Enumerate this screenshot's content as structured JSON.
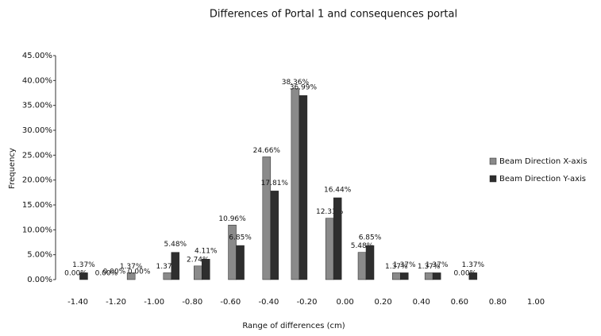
{
  "chart_data": {
    "type": "bar",
    "title": "Differences of Portal 1 and consequences portal",
    "x_label": "Range of differences (cm)",
    "y_label": "Frequency",
    "x": [
      -1.39,
      -1.23,
      -1.1,
      -0.91,
      -0.75,
      -0.57,
      -0.39,
      -0.24,
      -0.06,
      0.11,
      0.29,
      0.46,
      0.65
    ],
    "xlim": [
      -1.5,
      1.1
    ],
    "xticks": [
      {
        "value": -1.4,
        "label": "-1.40"
      },
      {
        "value": -1.2,
        "label": "-1.20"
      },
      {
        "value": -1.0,
        "label": "-1.00"
      },
      {
        "value": -0.8,
        "label": "-0.80"
      },
      {
        "value": -0.6,
        "label": "-0.60"
      },
      {
        "value": -0.4,
        "label": "-0.40"
      },
      {
        "value": -0.2,
        "label": "-0.20"
      },
      {
        "value": 0,
        "label": "0.00"
      },
      {
        "value": 0.2,
        "label": "0.20"
      },
      {
        "value": 0.4,
        "label": "0.40"
      },
      {
        "value": 0.6,
        "label": "0.60"
      },
      {
        "value": 0.8,
        "label": "0.80"
      },
      {
        "value": 1.0,
        "label": "1.00"
      }
    ],
    "ylim": [
      0,
      45
    ],
    "yticks": [
      {
        "value": 0,
        "label": "0.00%"
      },
      {
        "value": 5,
        "label": "5.00%"
      },
      {
        "value": 10,
        "label": "10.00%"
      },
      {
        "value": 15,
        "label": "15.00%"
      },
      {
        "value": 20,
        "label": "20.00%"
      },
      {
        "value": 25,
        "label": "25.00%"
      },
      {
        "value": 30,
        "label": "30.00%"
      },
      {
        "value": 35,
        "label": "35.00%"
      },
      {
        "value": 40,
        "label": "40.00%"
      },
      {
        "value": 45,
        "label": "45.00%"
      }
    ],
    "legend": "right",
    "series": [
      {
        "name": "Beam Direction X-axis",
        "color": "#8a8a8a",
        "values": [
          0,
          0,
          1.37,
          1.37,
          2.74,
          10.96,
          24.66,
          38.36,
          12.33,
          5.48,
          1.37,
          1.37,
          0
        ],
        "value_labels": [
          "0.00%",
          "0.00%",
          "1.37%",
          "1.37%",
          "2.74%",
          "10.96%",
          "24.66%",
          "38.36%",
          "12.33%",
          "5.48%",
          "1.37%",
          "1.37%",
          "0.00%"
        ]
      },
      {
        "name": "Beam Direction Y-axis",
        "color": "#2e2e2e",
        "values": [
          1.37,
          0,
          0,
          5.48,
          4.11,
          6.85,
          17.81,
          36.99,
          16.44,
          6.85,
          1.37,
          1.37,
          1.37
        ],
        "value_labels": [
          "1.37%",
          "0.00%",
          "0.00%",
          "5.48%",
          "4.11%",
          "6.85%",
          "17.81%",
          "36.99%",
          "16.44%",
          "6.85%",
          "1.37%",
          "1.37%",
          "1.37%"
        ]
      }
    ]
  }
}
